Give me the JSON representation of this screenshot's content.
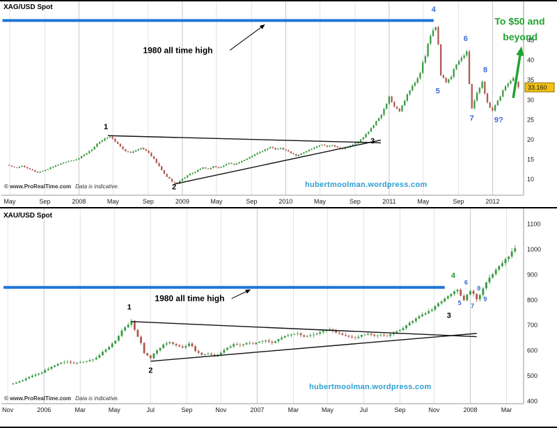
{
  "colors": {
    "up": "#3a9a43",
    "down": "#b05a50",
    "grid": "#e2e2e2",
    "grid_major": "#c6c6c6",
    "axis_line": "#9a9a9a",
    "axis_text": "#1a1a1a",
    "level_line": "#1b75d8",
    "trend_line": "#111111",
    "wave_black": "#000000",
    "wave_blue": "#3a6bd0",
    "wave_green": "#1fa32f",
    "watermark": "#2e9fd0",
    "tag_bg": "#f2c114",
    "tag_border": "#8a6d00",
    "tag_text": "#111111"
  },
  "charts": [
    {
      "id": "silver",
      "title": "XAG/USD Spot",
      "watermark": "hubertmoolman.wordpress.com",
      "copyright": {
        "brand": "© www.ProRealTime.com",
        "note": "Data is indicative."
      },
      "chart_data": {
        "type": "candlestick",
        "x_domain": [
          2007.25,
          2012.3
        ],
        "y_domain": [
          6,
          53.4
        ],
        "y_ticks": [
          10,
          15,
          20,
          25,
          30,
          35,
          40,
          45
        ],
        "x_ticks": [
          {
            "x": 2007.33,
            "label": "May"
          },
          {
            "x": 2007.67,
            "label": "Sep"
          },
          {
            "x": 2008.0,
            "label": "2008",
            "major": true
          },
          {
            "x": 2008.33,
            "label": "May"
          },
          {
            "x": 2008.67,
            "label": "Sep"
          },
          {
            "x": 2009.0,
            "label": "2009",
            "major": true
          },
          {
            "x": 2009.33,
            "label": "May"
          },
          {
            "x": 2009.67,
            "label": "Sep"
          },
          {
            "x": 2010.0,
            "label": "2010",
            "major": true
          },
          {
            "x": 2010.33,
            "label": "May"
          },
          {
            "x": 2010.67,
            "label": "Sep"
          },
          {
            "x": 2011.0,
            "label": "2011",
            "major": true
          },
          {
            "x": 2011.33,
            "label": "May"
          },
          {
            "x": 2011.67,
            "label": "Sep"
          },
          {
            "x": 2012.0,
            "label": "2012",
            "major": true
          }
        ],
        "series": {
          "x_start": 2007.3,
          "x_step": 0.05,
          "closes": [
            13.6,
            13.2,
            12.9,
            13.4,
            12.8,
            12.3,
            11.7,
            12.1,
            12.6,
            13.2,
            13.7,
            14.2,
            14.6,
            14.8,
            15.3,
            16.2,
            17.1,
            18.2,
            19.4,
            20.3,
            20.7,
            19.5,
            18.3,
            17.1,
            16.7,
            17.3,
            17.9,
            17.2,
            15.8,
            14.1,
            12.3,
            10.6,
            9.4,
            8.9,
            10.2,
            11.0,
            11.6,
            12.4,
            13.0,
            12.6,
            13.3,
            12.9,
            13.5,
            14.1,
            13.7,
            14.3,
            14.9,
            15.6,
            16.3,
            16.9,
            17.5,
            18.1,
            17.5,
            17.9,
            17.3,
            16.6,
            15.9,
            16.5,
            17.1,
            17.7,
            18.3,
            18.7,
            18.2,
            18.6,
            18.0,
            17.6,
            18.1,
            18.8,
            19.5,
            20.6,
            22.0,
            23.6,
            25.4,
            27.8,
            30.9,
            28.3,
            27.1,
            29.8,
            32.4,
            34.3,
            36.8,
            41.0,
            46.1,
            48.3,
            36.2,
            34.4,
            35.8,
            38.9,
            40.6,
            42.2,
            27.9,
            31.8,
            34.6,
            29.4,
            27.3,
            29.8,
            32.4,
            34.1,
            35.5,
            33.2
          ]
        },
        "last_price": {
          "value": 33.16,
          "label": "33.160"
        },
        "level_line": {
          "y": 50,
          "x1": 2007.26,
          "x2": 2011.43,
          "meaning": "1980 all time high"
        },
        "trend_lines": [
          {
            "x1": 2008.28,
            "y1": 21.0,
            "x2": 2010.92,
            "y2": 19.2
          },
          {
            "x1": 2008.92,
            "y1": 8.8,
            "x2": 2010.92,
            "y2": 19.9
          }
        ],
        "arrows": [
          {
            "id": "note-arrow",
            "x1": 2009.46,
            "y1": 42.5,
            "x2": 2009.8,
            "y2": 49.0,
            "color": "#000000",
            "width": 1
          },
          {
            "id": "target-arrow",
            "x1": 2012.2,
            "y1": 30.5,
            "x2": 2012.28,
            "y2": 43.5,
            "color": "#1fa32f",
            "width": 3.5
          }
        ],
        "labels": [
          {
            "id": "note-1980",
            "text": "1980 all time high",
            "x": 2008.62,
            "y": 41.8,
            "color": "#000000",
            "size": 12,
            "anchor": "start"
          },
          {
            "id": "wave-1",
            "text": "1",
            "x": 2008.26,
            "y": 22.6,
            "color": "#000000",
            "size": 11
          },
          {
            "id": "wave-2",
            "text": "2",
            "x": 2008.92,
            "y": 7.5,
            "color": "#000000",
            "size": 11
          },
          {
            "id": "wave-3",
            "text": "3",
            "x": 2010.84,
            "y": 19.0,
            "color": "#000000",
            "size": 11
          },
          {
            "id": "wave-4",
            "text": "4",
            "x": 2011.43,
            "y": 52.2,
            "color": "#3a6bd0",
            "size": 11
          },
          {
            "id": "wave-5",
            "text": "5",
            "x": 2011.47,
            "y": 31.6,
            "color": "#3a6bd0",
            "size": 11
          },
          {
            "id": "wave-6",
            "text": "6",
            "x": 2011.74,
            "y": 44.8,
            "color": "#3a6bd0",
            "size": 11
          },
          {
            "id": "wave-7",
            "text": "7",
            "x": 2011.8,
            "y": 24.8,
            "color": "#3a6bd0",
            "size": 11
          },
          {
            "id": "wave-8",
            "text": "8",
            "x": 2011.93,
            "y": 37.0,
            "color": "#3a6bd0",
            "size": 11
          },
          {
            "id": "wave-9",
            "text": "9?",
            "x": 2012.06,
            "y": 24.4,
            "color": "#3a6bd0",
            "size": 11
          },
          {
            "id": "target-line1",
            "text": "To $50 and",
            "x": 2012.02,
            "y": 48.9,
            "color": "#1fa32f",
            "size": 14,
            "anchor": "start"
          },
          {
            "id": "target-line2",
            "text": "beyond",
            "x": 2012.1,
            "y": 45.0,
            "color": "#1fa32f",
            "size": 14,
            "anchor": "start"
          }
        ]
      }
    },
    {
      "id": "gold",
      "title": "XAU/USD Spot",
      "watermark": "hubertmoolman.wordpress.com",
      "copyright": {
        "brand": "© www.ProRealTime.com",
        "note": "Data is indicative."
      },
      "chart_data": {
        "type": "candlestick",
        "x_domain": [
          2005.8,
          2008.25
        ],
        "y_domain": [
          390,
          1135
        ],
        "y_ticks": [
          400,
          500,
          600,
          700,
          800,
          900,
          1000,
          1100
        ],
        "x_ticks": [
          {
            "x": 2005.83,
            "label": "Nov"
          },
          {
            "x": 2006.0,
            "label": "2006",
            "major": true
          },
          {
            "x": 2006.17,
            "label": "Mar"
          },
          {
            "x": 2006.33,
            "label": "May"
          },
          {
            "x": 2006.5,
            "label": "Jul"
          },
          {
            "x": 2006.67,
            "label": "Sep"
          },
          {
            "x": 2006.83,
            "label": "Nov"
          },
          {
            "x": 2007.0,
            "label": "2007",
            "major": true
          },
          {
            "x": 2007.17,
            "label": "Mar"
          },
          {
            "x": 2007.33,
            "label": "May"
          },
          {
            "x": 2007.5,
            "label": "Jul"
          },
          {
            "x": 2007.67,
            "label": "Sep"
          },
          {
            "x": 2007.83,
            "label": "Nov"
          },
          {
            "x": 2008.0,
            "label": "2008",
            "major": true
          },
          {
            "x": 2008.17,
            "label": "Mar"
          }
        ],
        "series": {
          "x_start": 2005.84,
          "x_step": 0.03,
          "closes": [
            467,
            474,
            483,
            495,
            505,
            513,
            528,
            541,
            552,
            556,
            549,
            554,
            558,
            565,
            582,
            604,
            628,
            658,
            692,
            718,
            655,
            590,
            570,
            601,
            624,
            633,
            621,
            612,
            628,
            598,
            583,
            588,
            577,
            592,
            611,
            626,
            621,
            630,
            626,
            635,
            640,
            631,
            645,
            657,
            664,
            668,
            655,
            661,
            667,
            678,
            684,
            671,
            662,
            655,
            650,
            662,
            667,
            658,
            663,
            658,
            672,
            681,
            700,
            717,
            736,
            748,
            762,
            787,
            806,
            824,
            841,
            799,
            836,
            803,
            846,
            889,
            920,
            946,
            972,
            1005
          ]
        },
        "level_line": {
          "y": 850,
          "x1": 2005.81,
          "x2": 2007.88,
          "meaning": "1980 all time high"
        },
        "trend_lines": [
          {
            "x1": 2006.41,
            "y1": 715,
            "x2": 2008.03,
            "y2": 655
          },
          {
            "x1": 2006.5,
            "y1": 558,
            "x2": 2008.03,
            "y2": 668
          }
        ],
        "arrows": [
          {
            "id": "note-arrow",
            "x1": 2006.88,
            "y1": 806,
            "x2": 2006.97,
            "y2": 842,
            "color": "#000000",
            "width": 1
          }
        ],
        "labels": [
          {
            "id": "note-1980",
            "text": "1980 all time high",
            "x": 2006.52,
            "y": 795,
            "color": "#000000",
            "size": 12,
            "anchor": "start"
          },
          {
            "id": "wave-1",
            "text": "1",
            "x": 2006.4,
            "y": 762,
            "color": "#000000",
            "size": 11
          },
          {
            "id": "wave-2",
            "text": "2",
            "x": 2006.5,
            "y": 512,
            "color": "#000000",
            "size": 11
          },
          {
            "id": "wave-3",
            "text": "3",
            "x": 2007.9,
            "y": 730,
            "color": "#000000",
            "size": 11
          },
          {
            "id": "wave-4",
            "text": "4",
            "x": 2007.92,
            "y": 888,
            "color": "#1fa32f",
            "size": 11
          },
          {
            "id": "wave-5",
            "text": "5",
            "x": 2007.95,
            "y": 780,
            "color": "#3a6bd0",
            "size": 9
          },
          {
            "id": "wave-6",
            "text": "6",
            "x": 2007.98,
            "y": 862,
            "color": "#3a6bd0",
            "size": 9
          },
          {
            "id": "wave-7",
            "text": "7",
            "x": 2008.01,
            "y": 768,
            "color": "#3a6bd0",
            "size": 9
          },
          {
            "id": "wave-8",
            "text": "8",
            "x": 2008.04,
            "y": 838,
            "color": "#3a6bd0",
            "size": 9
          },
          {
            "id": "wave-9",
            "text": "9",
            "x": 2008.07,
            "y": 795,
            "color": "#3a6bd0",
            "size": 9
          }
        ]
      }
    }
  ]
}
